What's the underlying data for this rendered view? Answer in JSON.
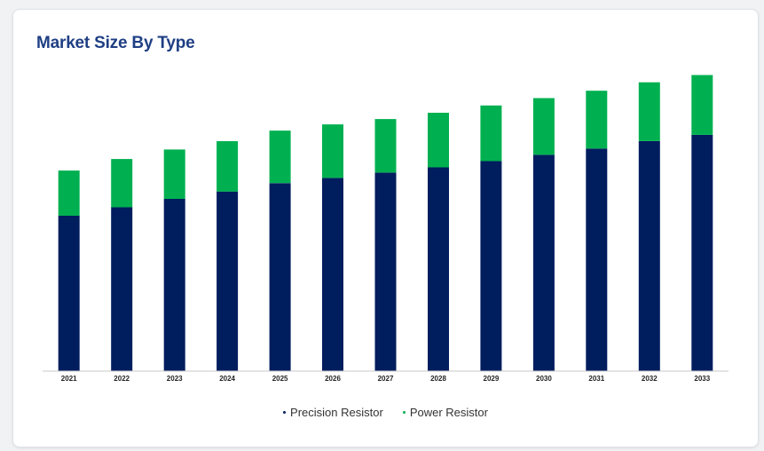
{
  "card": {
    "title": "Market Size By Type"
  },
  "colors": {
    "precision": "#001d5e",
    "power": "#00b050",
    "axis": "#c8c8c8",
    "title": "#1f3f84"
  },
  "chart_data": {
    "type": "bar",
    "stacked": true,
    "title": "Market Size By Type",
    "xlabel": "",
    "ylabel": "",
    "grid": false,
    "legend_position": "bottom-center",
    "categories": [
      "2021",
      "2022",
      "2023",
      "2024",
      "2025",
      "2026",
      "2027",
      "2028",
      "2029",
      "2030",
      "2031",
      "2032",
      "2033"
    ],
    "ylim": [
      0,
      290
    ],
    "series": [
      {
        "name": "Precision Resistor",
        "color": "#001d5e",
        "values": [
          148,
          156,
          164,
          171,
          179,
          184,
          189,
          194,
          200,
          206,
          212,
          219,
          225
        ]
      },
      {
        "name": "Power Resistor",
        "color": "#00b050",
        "values": [
          43,
          46,
          47,
          48,
          50,
          51,
          51,
          52,
          53,
          54,
          55,
          56,
          57
        ]
      }
    ]
  }
}
